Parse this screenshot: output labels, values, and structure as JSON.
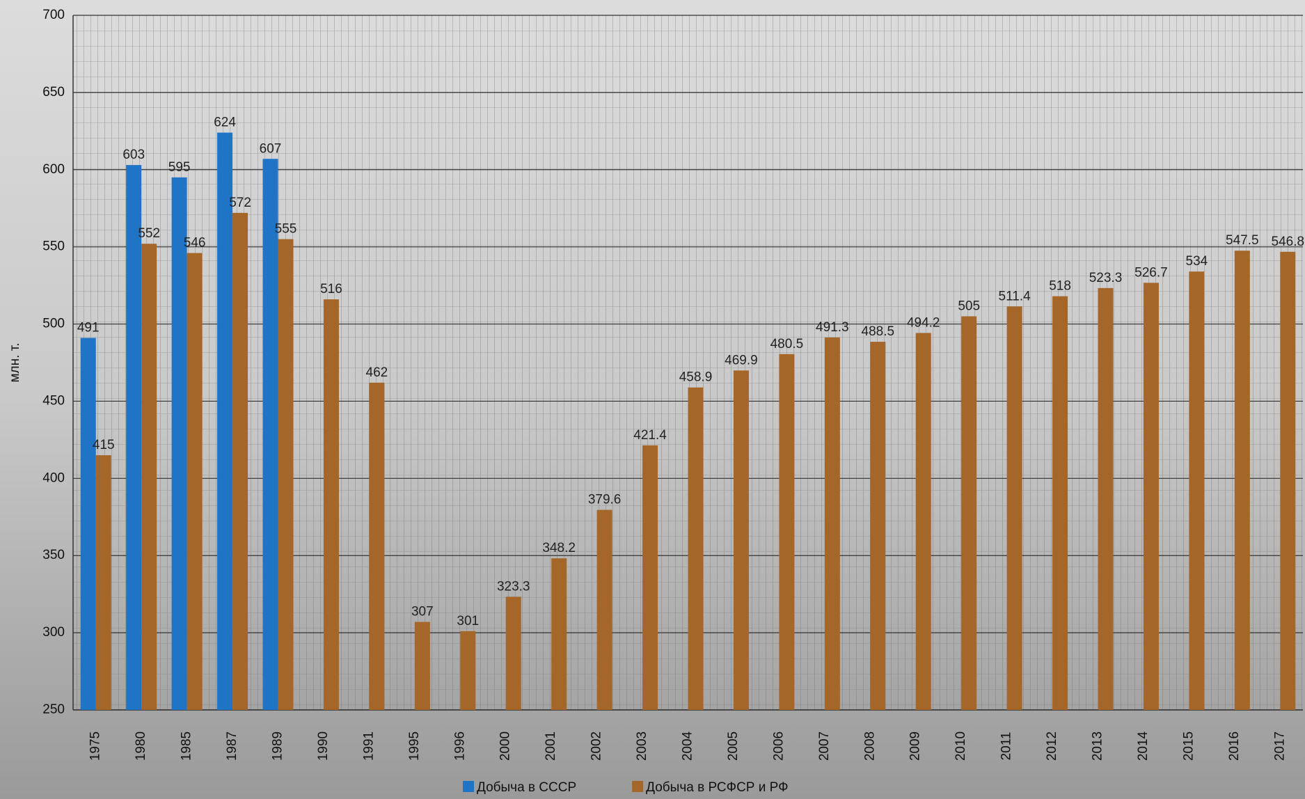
{
  "chart_data": {
    "type": "bar",
    "y_label": "млн. т.",
    "categories": [
      "1975",
      "1980",
      "1985",
      "1987",
      "1989",
      "1990",
      "1991",
      "1995",
      "1996",
      "2000",
      "2001",
      "2002",
      "2003",
      "2004",
      "2005",
      "2006",
      "2007",
      "2008",
      "2009",
      "2010",
      "2011",
      "2012",
      "2013",
      "2014",
      "2015",
      "2016",
      "2017"
    ],
    "series": [
      {
        "name": "Добыча в СССР",
        "color": "#1f74c6",
        "values": [
          491,
          603,
          595,
          624,
          607,
          null,
          null,
          null,
          null,
          null,
          null,
          null,
          null,
          null,
          null,
          null,
          null,
          null,
          null,
          null,
          null,
          null,
          null,
          null,
          null,
          null,
          null
        ]
      },
      {
        "name": "Добыча в РСФСР и РФ",
        "color": "#a5662a",
        "values": [
          415,
          552,
          546,
          572,
          555,
          516,
          462,
          307,
          301,
          323.3,
          348.2,
          379.6,
          421.4,
          458.9,
          469.9,
          480.5,
          491.3,
          488.5,
          494.2,
          505,
          511.4,
          518,
          523.3,
          526.7,
          534,
          547.5,
          546.8
        ]
      }
    ],
    "ylim": [
      250,
      700
    ],
    "yticks": [
      250,
      300,
      350,
      400,
      450,
      500,
      550,
      600,
      650,
      700
    ],
    "grid": true
  }
}
